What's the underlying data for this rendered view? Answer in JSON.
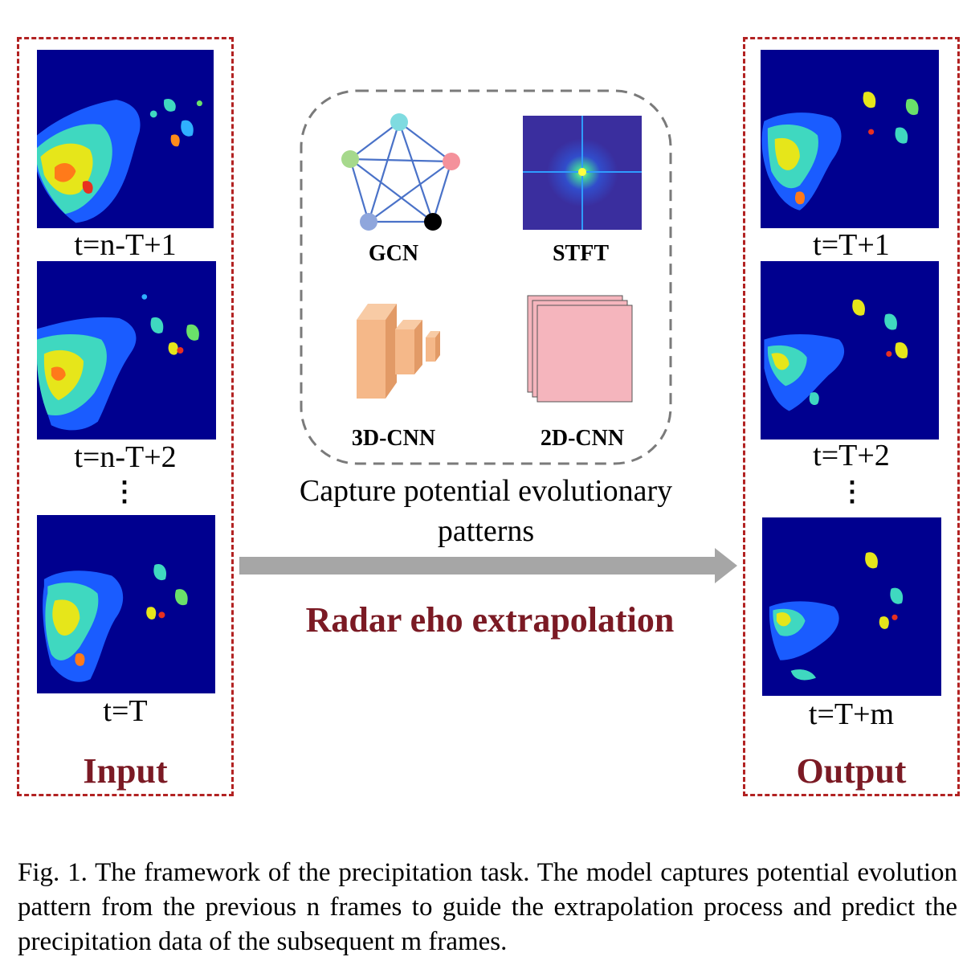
{
  "input": {
    "title": "Input",
    "frames": [
      "t=n-T+1",
      "t=n-T+2",
      "t=T"
    ],
    "ellipsis": "⋮"
  },
  "output": {
    "title": "Output",
    "frames": [
      "t=T+1",
      "t=T+2",
      "t=T+m"
    ],
    "ellipsis": "⋮"
  },
  "modules": {
    "gcn": "GCN",
    "stft": "STFT",
    "cnn3d": "3D-CNN",
    "cnn2d": "2D-CNN"
  },
  "center_caption": "Capture potential evolutionary patterns",
  "arrow_label": "Radar eho extrapolation",
  "figure_caption": "Fig. 1.  The framework of the precipitation task. The model captures potential evolution pattern from the previous n frames to guide the extrapolation process and predict the precipitation data of the subsequent m frames.",
  "colors": {
    "box_border": "#b22222",
    "title_color": "#7b1a24",
    "radar_background": "#00008f",
    "arrow": "#a6a6a6",
    "gcn_node_colors": [
      "#7fdbe0",
      "#a6d98c",
      "#f4919b",
      "#8fa6dc",
      "#000000"
    ],
    "cnn3d_color": "#f5b889",
    "cnn2d_color": "#f5b5bd"
  }
}
